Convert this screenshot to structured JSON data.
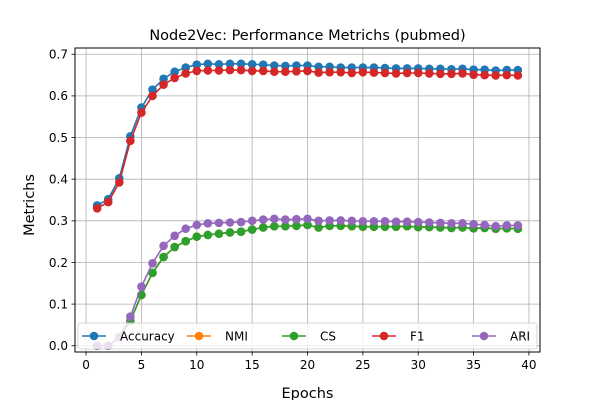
{
  "chart_data": {
    "type": "line",
    "title": "Node2Vec: Performance Metrichs (pubmed)",
    "xlabel": "Epochs",
    "ylabel": "Metrichs",
    "xlim": [
      -1,
      41
    ],
    "ylim": [
      -0.015,
      0.715
    ],
    "xticks": [
      0,
      5,
      10,
      15,
      20,
      25,
      30,
      35,
      40
    ],
    "yticks": [
      0.0,
      0.1,
      0.2,
      0.3,
      0.4,
      0.5,
      0.6,
      0.7
    ],
    "grid": true,
    "legend": {
      "placement": "lower-center",
      "ncol": 5
    },
    "x": [
      1,
      2,
      3,
      4,
      5,
      6,
      7,
      8,
      9,
      10,
      11,
      12,
      13,
      14,
      15,
      16,
      17,
      18,
      19,
      20,
      21,
      22,
      23,
      24,
      25,
      26,
      27,
      28,
      29,
      30,
      31,
      32,
      33,
      34,
      35,
      36,
      37,
      38,
      39
    ],
    "series": [
      {
        "name": "Accuracy",
        "color": "#1f77b4",
        "values": [
          0.337,
          0.352,
          0.402,
          0.503,
          0.572,
          0.615,
          0.641,
          0.658,
          0.668,
          0.675,
          0.677,
          0.676,
          0.677,
          0.677,
          0.676,
          0.675,
          0.673,
          0.672,
          0.673,
          0.673,
          0.67,
          0.67,
          0.668,
          0.668,
          0.668,
          0.668,
          0.667,
          0.666,
          0.666,
          0.666,
          0.665,
          0.665,
          0.664,
          0.665,
          0.663,
          0.663,
          0.661,
          0.662,
          0.662
        ]
      },
      {
        "name": "NMI",
        "color": "#ff7f0e",
        "values": [
          0.0,
          0.0,
          0.02,
          0.06,
          0.122,
          0.175,
          0.213,
          0.237,
          0.251,
          0.262,
          0.266,
          0.269,
          0.272,
          0.274,
          0.279,
          0.284,
          0.287,
          0.287,
          0.288,
          0.29,
          0.284,
          0.288,
          0.288,
          0.287,
          0.286,
          0.286,
          0.286,
          0.286,
          0.287,
          0.285,
          0.285,
          0.284,
          0.283,
          0.284,
          0.282,
          0.283,
          0.281,
          0.282,
          0.281
        ]
      },
      {
        "name": "CS",
        "color": "#2ca02c",
        "values": [
          0.0,
          0.0,
          0.02,
          0.06,
          0.122,
          0.175,
          0.213,
          0.237,
          0.251,
          0.262,
          0.266,
          0.269,
          0.272,
          0.274,
          0.279,
          0.284,
          0.287,
          0.287,
          0.288,
          0.29,
          0.284,
          0.288,
          0.288,
          0.287,
          0.286,
          0.286,
          0.286,
          0.286,
          0.287,
          0.285,
          0.285,
          0.284,
          0.283,
          0.284,
          0.282,
          0.283,
          0.281,
          0.282,
          0.281
        ]
      },
      {
        "name": "F1",
        "color": "#d62728",
        "values": [
          0.33,
          0.345,
          0.392,
          0.492,
          0.56,
          0.6,
          0.627,
          0.643,
          0.654,
          0.66,
          0.661,
          0.661,
          0.662,
          0.662,
          0.66,
          0.66,
          0.658,
          0.658,
          0.659,
          0.66,
          0.656,
          0.657,
          0.657,
          0.655,
          0.657,
          0.656,
          0.655,
          0.654,
          0.655,
          0.655,
          0.654,
          0.653,
          0.653,
          0.654,
          0.651,
          0.65,
          0.649,
          0.65,
          0.649
        ]
      },
      {
        "name": "ARI",
        "color": "#9467bd",
        "values": [
          0.0,
          0.0,
          0.02,
          0.07,
          0.142,
          0.198,
          0.24,
          0.264,
          0.281,
          0.29,
          0.294,
          0.295,
          0.296,
          0.297,
          0.3,
          0.303,
          0.305,
          0.303,
          0.304,
          0.305,
          0.3,
          0.301,
          0.301,
          0.3,
          0.299,
          0.299,
          0.299,
          0.298,
          0.298,
          0.297,
          0.296,
          0.295,
          0.294,
          0.294,
          0.292,
          0.29,
          0.287,
          0.289,
          0.289
        ]
      }
    ]
  }
}
